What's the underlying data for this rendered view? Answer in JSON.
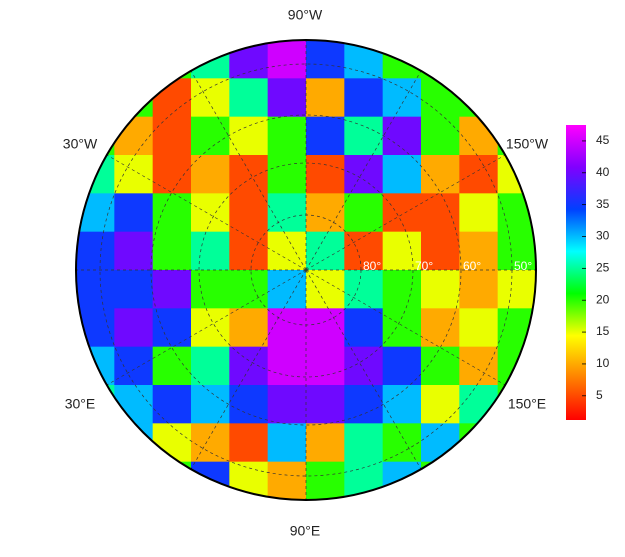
{
  "chart_data": {
    "type": "polar-map",
    "lon_labels": [
      "90°W",
      "30°W",
      "150°W",
      "30°E",
      "150°E",
      "90°E"
    ],
    "lat_labels": [
      "80°",
      "70°",
      "60°",
      "50°"
    ],
    "colormap": [
      "#ff0000",
      "#ff8000",
      "#ffff00",
      "#00ff00",
      "#00ffff",
      "#0040ff",
      "#8000ff",
      "#ff00ff"
    ],
    "grid": [
      [
        20,
        20,
        20,
        25,
        40,
        45,
        35,
        30,
        20,
        20,
        20,
        20
      ],
      [
        20,
        20,
        5,
        15,
        25,
        40,
        10,
        35,
        30,
        20,
        20,
        20
      ],
      [
        20,
        10,
        5,
        20,
        15,
        20,
        35,
        25,
        40,
        20,
        10,
        20
      ],
      [
        25,
        15,
        5,
        10,
        5,
        20,
        5,
        40,
        30,
        10,
        5,
        15
      ],
      [
        30,
        35,
        20,
        15,
        5,
        25,
        10,
        20,
        5,
        5,
        15,
        20
      ],
      [
        35,
        40,
        20,
        25,
        5,
        15,
        25,
        5,
        15,
        5,
        10,
        20
      ],
      [
        35,
        35,
        40,
        20,
        20,
        30,
        15,
        25,
        20,
        15,
        10,
        15
      ],
      [
        35,
        40,
        35,
        15,
        10,
        45,
        45,
        35,
        20,
        10,
        15,
        20
      ],
      [
        30,
        35,
        20,
        25,
        40,
        45,
        45,
        40,
        35,
        20,
        10,
        20
      ],
      [
        25,
        30,
        35,
        30,
        35,
        40,
        40,
        35,
        30,
        15,
        25,
        20
      ],
      [
        20,
        30,
        15,
        10,
        5,
        30,
        10,
        25,
        20,
        30,
        20,
        20
      ],
      [
        20,
        20,
        20,
        35,
        15,
        10,
        20,
        25,
        30,
        20,
        20,
        20
      ]
    ],
    "colorbar": {
      "lim": [
        1.2,
        47.5
      ],
      "ticks": [
        5,
        10,
        15,
        20,
        25,
        30,
        35,
        40,
        45
      ]
    }
  }
}
